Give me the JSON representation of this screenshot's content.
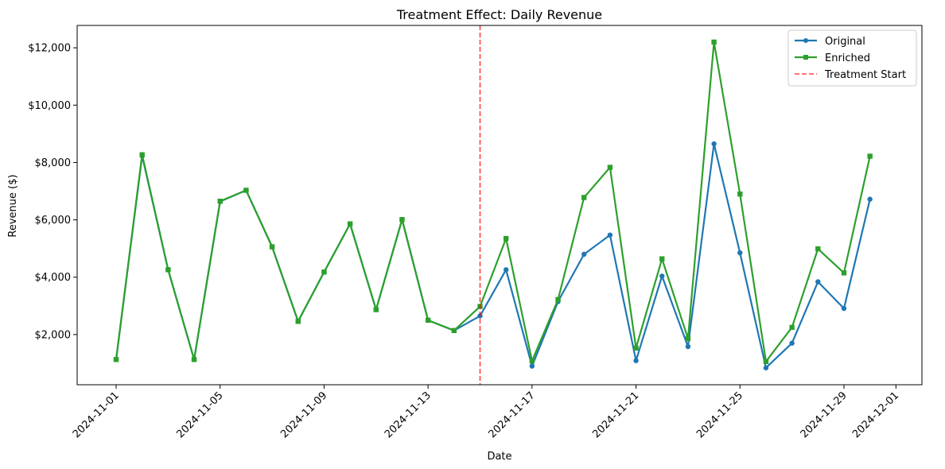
{
  "chart_data": {
    "type": "line",
    "title": "Treatment Effect: Daily Revenue",
    "xlabel": "Date",
    "ylabel": "Revenue ($)",
    "x_tick_labels": [
      "2024-11-01",
      "2024-11-05",
      "2024-11-09",
      "2024-11-13",
      "2024-11-17",
      "2024-11-21",
      "2024-11-25",
      "2024-11-29",
      "2024-12-01"
    ],
    "y_tick_labels": [
      "$2,000",
      "$4,000",
      "$6,000",
      "$8,000",
      "$10,000",
      "$12,000"
    ],
    "y_ticks": [
      2000,
      4000,
      6000,
      8000,
      10000,
      12000
    ],
    "x_tick_days": [
      0,
      4,
      8,
      12,
      16,
      20,
      24,
      28,
      30
    ],
    "xlim": [
      -1.5,
      31.0
    ],
    "ylim": [
      250,
      12780
    ],
    "x": [
      0,
      1,
      2,
      3,
      4,
      5,
      6,
      7,
      8,
      9,
      10,
      11,
      12,
      13,
      14,
      15,
      16,
      17,
      18,
      19,
      20,
      21,
      22,
      23,
      24,
      25,
      26,
      27,
      28,
      29
    ],
    "series": [
      {
        "name": "Original",
        "color": "#1f77b4",
        "marker": "circle",
        "values": [
          1130,
          8230,
          4260,
          1130,
          6640,
          7030,
          5060,
          2460,
          4180,
          5860,
          2870,
          6010,
          2500,
          2140,
          2650,
          4260,
          900,
          3150,
          4800,
          5470,
          1090,
          4040,
          1580,
          8650,
          4850,
          840,
          1700,
          3840,
          2910,
          6720
        ]
      },
      {
        "name": "Enriched",
        "color": "#2ca02c",
        "marker": "square",
        "values": [
          1130,
          8270,
          4260,
          1130,
          6650,
          7030,
          5060,
          2460,
          4180,
          5860,
          2870,
          6010,
          2500,
          2140,
          2980,
          5350,
          1080,
          3220,
          6780,
          7830,
          1530,
          4640,
          1860,
          12200,
          6900,
          1060,
          2250,
          4990,
          4150,
          8220
        ]
      }
    ],
    "reference_line": {
      "name": "Treatment Start",
      "x": 14,
      "color": "#ff0000",
      "style": "dashed"
    },
    "legend": {
      "position": "top-right",
      "entries": [
        "Original",
        "Enriched",
        "Treatment Start"
      ]
    },
    "grid": false
  }
}
